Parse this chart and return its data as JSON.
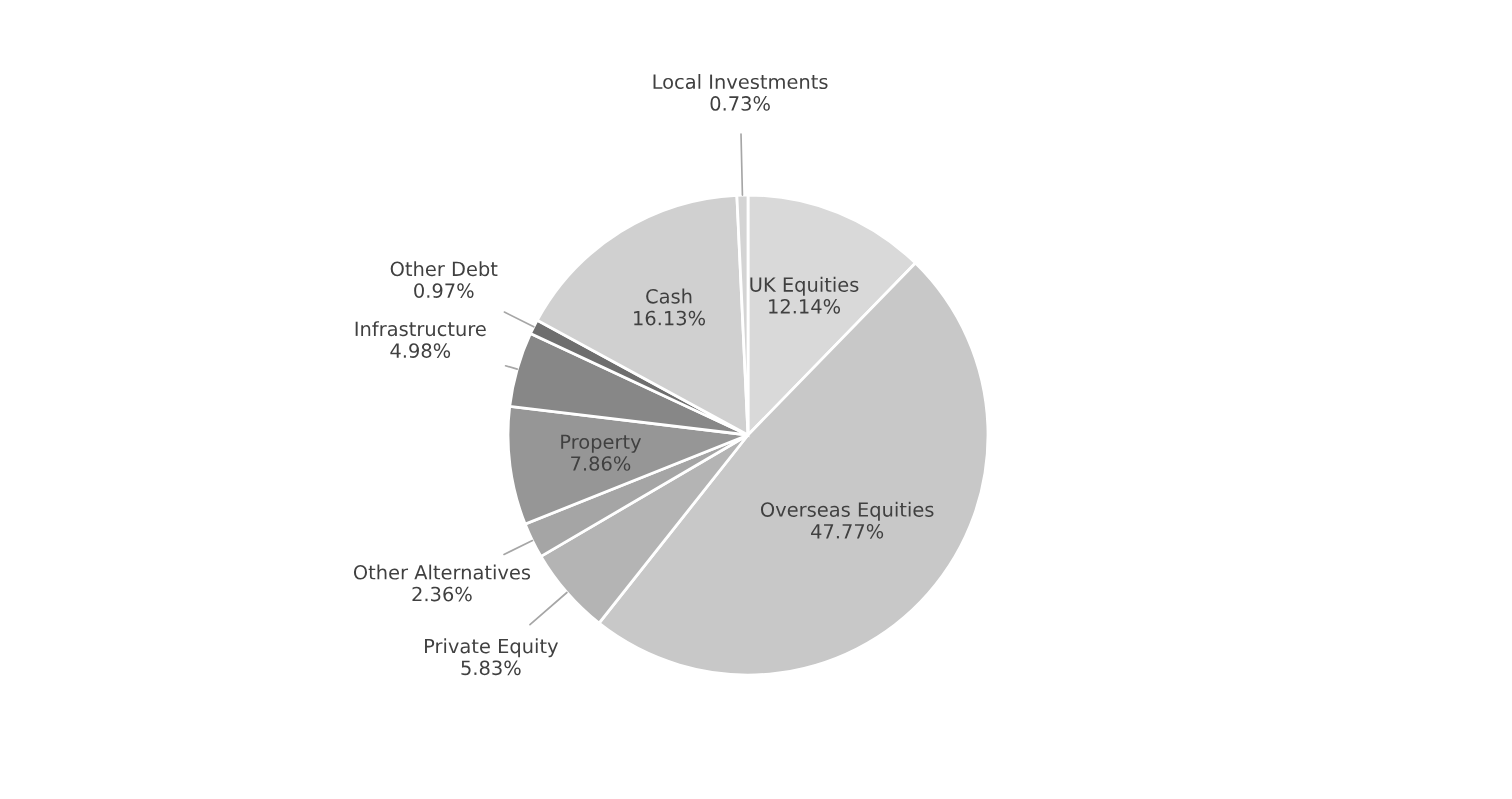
{
  "chart_data": {
    "type": "pie",
    "categories": [
      "UK Equities",
      "Overseas Equities",
      "Private Equity",
      "Other Alternatives",
      "Property",
      "Infrastructure",
      "Other Debt",
      "Cash",
      "Local Investments"
    ],
    "values": [
      12.14,
      47.77,
      5.83,
      2.36,
      7.86,
      4.98,
      0.97,
      16.13,
      0.73
    ],
    "value_labels": [
      "12.14%",
      "47.77%",
      "5.83%",
      "2.36%",
      "7.86%",
      "4.98%",
      "0.97%",
      "16.13%",
      "0.73%"
    ],
    "colors": [
      "#d9d9d9",
      "#c8c8c8",
      "#b4b4b4",
      "#a5a5a5",
      "#969696",
      "#878787",
      "#6e6e6e",
      "#d0d0d0",
      "#d4d4d4"
    ]
  }
}
